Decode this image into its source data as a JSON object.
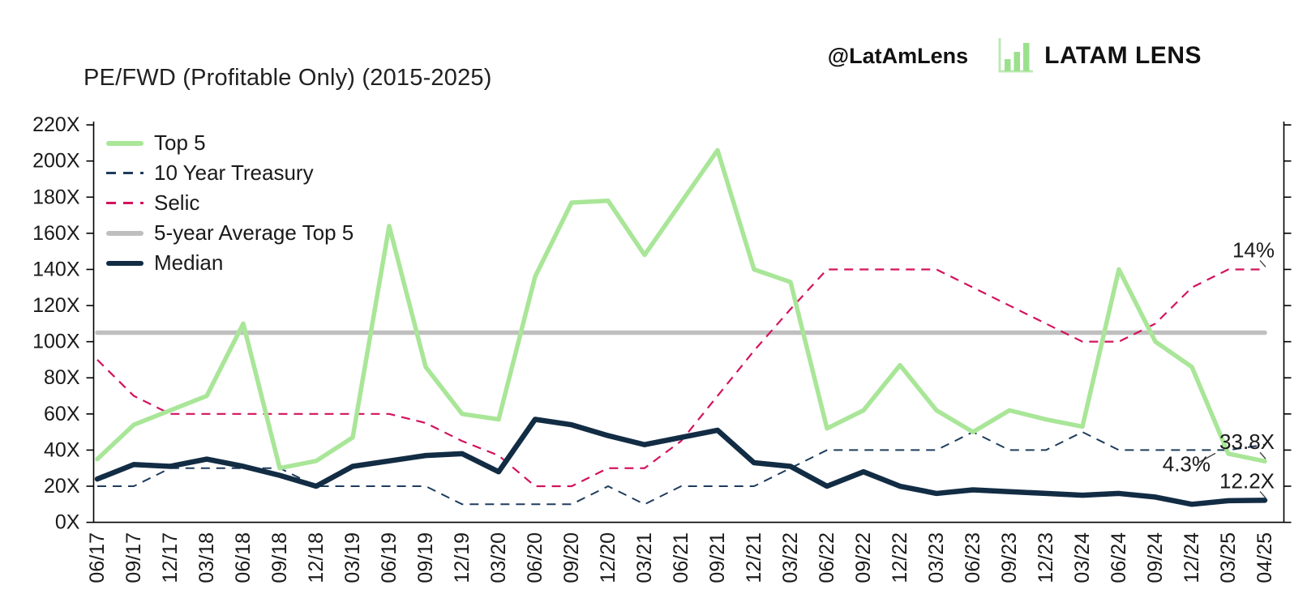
{
  "branding": {
    "handle": "@LatAmLens",
    "brand_name": "LATAM LENS",
    "logo_icon": "bar-chart-icon"
  },
  "title": "PE/FWD (Profitable Only) (2015-2025)",
  "colors": {
    "top5": "#a9e698",
    "treasury": "#1e3c5c",
    "selic": "#d3135e",
    "average": "#bfbfbf",
    "median": "#122c44",
    "text": "#1a1a1a",
    "axis": "#000000",
    "logo_green": "#9be18d"
  },
  "chart_data": {
    "type": "line",
    "title": "PE/FWD (Profitable Only) (2015-2025)",
    "x_labels": [
      "06/17",
      "09/17",
      "12/17",
      "03/18",
      "06/18",
      "09/18",
      "12/18",
      "03/19",
      "06/19",
      "09/19",
      "12/19",
      "03/20",
      "06/20",
      "09/20",
      "12/20",
      "03/21",
      "06/21",
      "09/21",
      "12/21",
      "03/22",
      "06/22",
      "09/22",
      "12/22",
      "03/23",
      "06/23",
      "09/23",
      "12/23",
      "03/24",
      "06/24",
      "09/24",
      "12/24",
      "03/25",
      "04/25"
    ],
    "y_axis": {
      "min": 0,
      "max": 220,
      "step": 20,
      "suffix": "X"
    },
    "grid": false,
    "legend_position": "top-left-inside",
    "series": [
      {
        "name": "Top 5",
        "color": "#a9e698",
        "line_style": "solid",
        "values": [
          35,
          54,
          62,
          70,
          110,
          30,
          34,
          47,
          164,
          86,
          60,
          57,
          136,
          177,
          178,
          148,
          177,
          206,
          140,
          133,
          52,
          62,
          87,
          62,
          50,
          62,
          57,
          53,
          140,
          100,
          86,
          38,
          33.8
        ]
      },
      {
        "name": "10 Year Treasury",
        "color": "#1e3c5c",
        "line_style": "dashed",
        "values": [
          20,
          20,
          30,
          30,
          30,
          30,
          20,
          20,
          20,
          20,
          10,
          10,
          10,
          10,
          20,
          10,
          20,
          20,
          20,
          30,
          40,
          40,
          40,
          40,
          50,
          40,
          40,
          50,
          40,
          40,
          40,
          40,
          43
        ]
      },
      {
        "name": "Selic",
        "color": "#d3135e",
        "line_style": "dashed",
        "values": [
          90,
          70,
          60,
          60,
          60,
          60,
          60,
          60,
          60,
          55,
          45,
          37,
          20,
          20,
          30,
          30,
          45,
          70,
          95,
          118,
          140,
          140,
          140,
          140,
          130,
          120,
          110,
          100,
          100,
          110,
          130,
          140,
          140
        ]
      },
      {
        "name": "5-year Average Top 5",
        "color": "#bfbfbf",
        "line_style": "solid",
        "values": [
          105,
          105,
          105,
          105,
          105,
          105,
          105,
          105,
          105,
          105,
          105,
          105,
          105,
          105,
          105,
          105,
          105,
          105,
          105,
          105,
          105,
          105,
          105,
          105,
          105,
          105,
          105,
          105,
          105,
          105,
          105,
          105,
          105
        ]
      },
      {
        "name": "Median",
        "color": "#122c44",
        "line_style": "solid",
        "values": [
          24,
          32,
          31,
          35,
          31,
          26,
          20,
          31,
          34,
          37,
          38,
          28,
          57,
          54,
          48,
          43,
          47,
          51,
          33,
          31,
          20,
          28,
          20,
          16,
          18,
          17,
          16,
          15,
          16,
          14,
          10,
          12,
          12.2
        ]
      }
    ],
    "annotations": [
      {
        "text": "14%",
        "series_index": 2,
        "point_index": 32,
        "placement": "above-left"
      },
      {
        "text": "33.8X",
        "series_index": 0,
        "point_index": 32,
        "placement": "above-left"
      },
      {
        "text": "4.3%",
        "series_index": 1,
        "point_index": 31,
        "placement": "below-left"
      },
      {
        "text": "12.2X",
        "series_index": 4,
        "point_index": 32,
        "placement": "above-left"
      }
    ]
  }
}
